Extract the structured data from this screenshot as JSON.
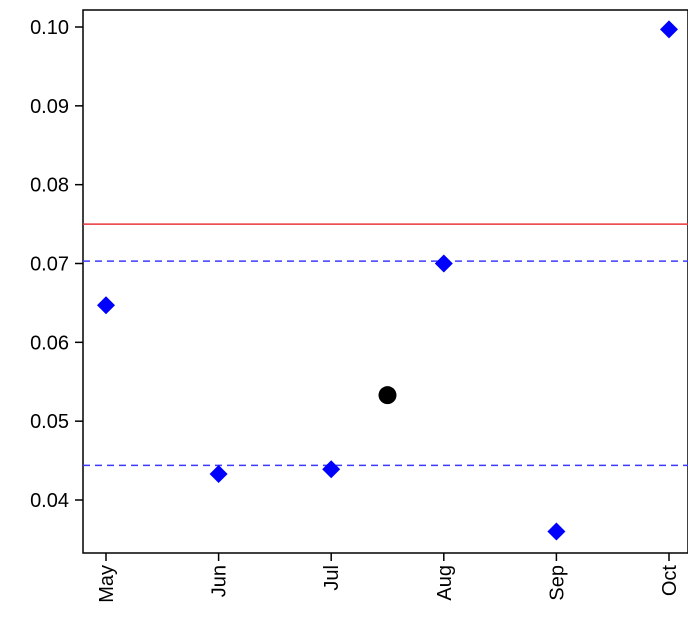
{
  "chart_data": {
    "type": "scatter",
    "title": "",
    "xlabel": "",
    "ylabel": "",
    "categories": [
      "May",
      "Jun",
      "Jul",
      "Aug",
      "Sep",
      "Oct"
    ],
    "y_ticks": [
      "0.04",
      "0.05",
      "0.06",
      "0.07",
      "0.08",
      "0.09",
      "0.10"
    ],
    "ylim": [
      0.033,
      0.102
    ],
    "grid": false,
    "series": [
      {
        "marker": "diamond",
        "color": "#0000ff",
        "points": [
          {
            "x": "May",
            "y": 0.0647
          },
          {
            "x": "Jun",
            "y": 0.0433
          },
          {
            "x": "Jul",
            "y": 0.0439
          },
          {
            "x": "Aug",
            "y": 0.07
          },
          {
            "x": "Sep",
            "y": 0.036
          },
          {
            "x": "Oct",
            "y": 0.0997
          }
        ]
      },
      {
        "marker": "circle",
        "color": "#000000",
        "points": [
          {
            "x": 2.5,
            "y": 0.0533
          }
        ]
      }
    ],
    "reference_lines": [
      {
        "y": 0.075,
        "style": "solid",
        "color": "#e8343a"
      },
      {
        "y": 0.0703,
        "style": "dashed",
        "color": "#3b3bff"
      },
      {
        "y": 0.0444,
        "style": "dashed",
        "color": "#3b3bff"
      }
    ]
  }
}
